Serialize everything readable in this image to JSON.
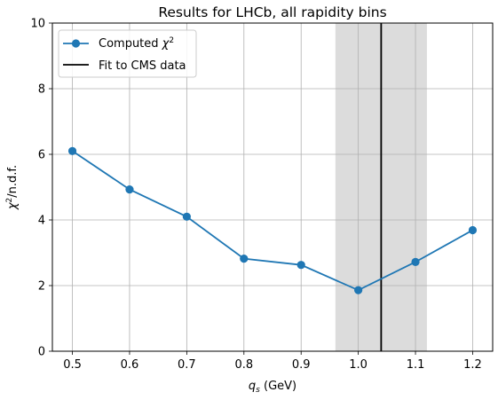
{
  "chart_data": {
    "type": "line",
    "title": "Results for LHCb, all rapidity bins",
    "xlabel": "q_s (GeV)",
    "ylabel": "χ²/n.d.f.",
    "xlim": [
      0.465,
      1.235
    ],
    "ylim": [
      0,
      10
    ],
    "xticks": [
      "0.5",
      "0.6",
      "0.7",
      "0.8",
      "0.9",
      "1.0",
      "1.1",
      "1.2"
    ],
    "xtick_values": [
      0.5,
      0.6,
      0.7,
      0.8,
      0.9,
      1.0,
      1.1,
      1.2
    ],
    "yticks": [
      "0",
      "2",
      "4",
      "6",
      "8",
      "10"
    ],
    "ytick_values": [
      0,
      2,
      4,
      6,
      8,
      10
    ],
    "grid": true,
    "legend_position": "top-left",
    "series": [
      {
        "name": "Computed χ²",
        "color": "#1f77b4",
        "x": [
          0.5,
          0.6,
          0.7,
          0.8,
          0.9,
          1.0,
          1.1,
          1.2
        ],
        "y": [
          6.1,
          4.93,
          4.1,
          2.82,
          2.63,
          1.86,
          2.72,
          3.69
        ]
      }
    ],
    "fit_line": {
      "name": "Fit to CMS data",
      "x": 1.04,
      "color": "#000000"
    },
    "band": {
      "x_min": 0.96,
      "x_max": 1.12,
      "color": "#dcdcdc"
    }
  }
}
